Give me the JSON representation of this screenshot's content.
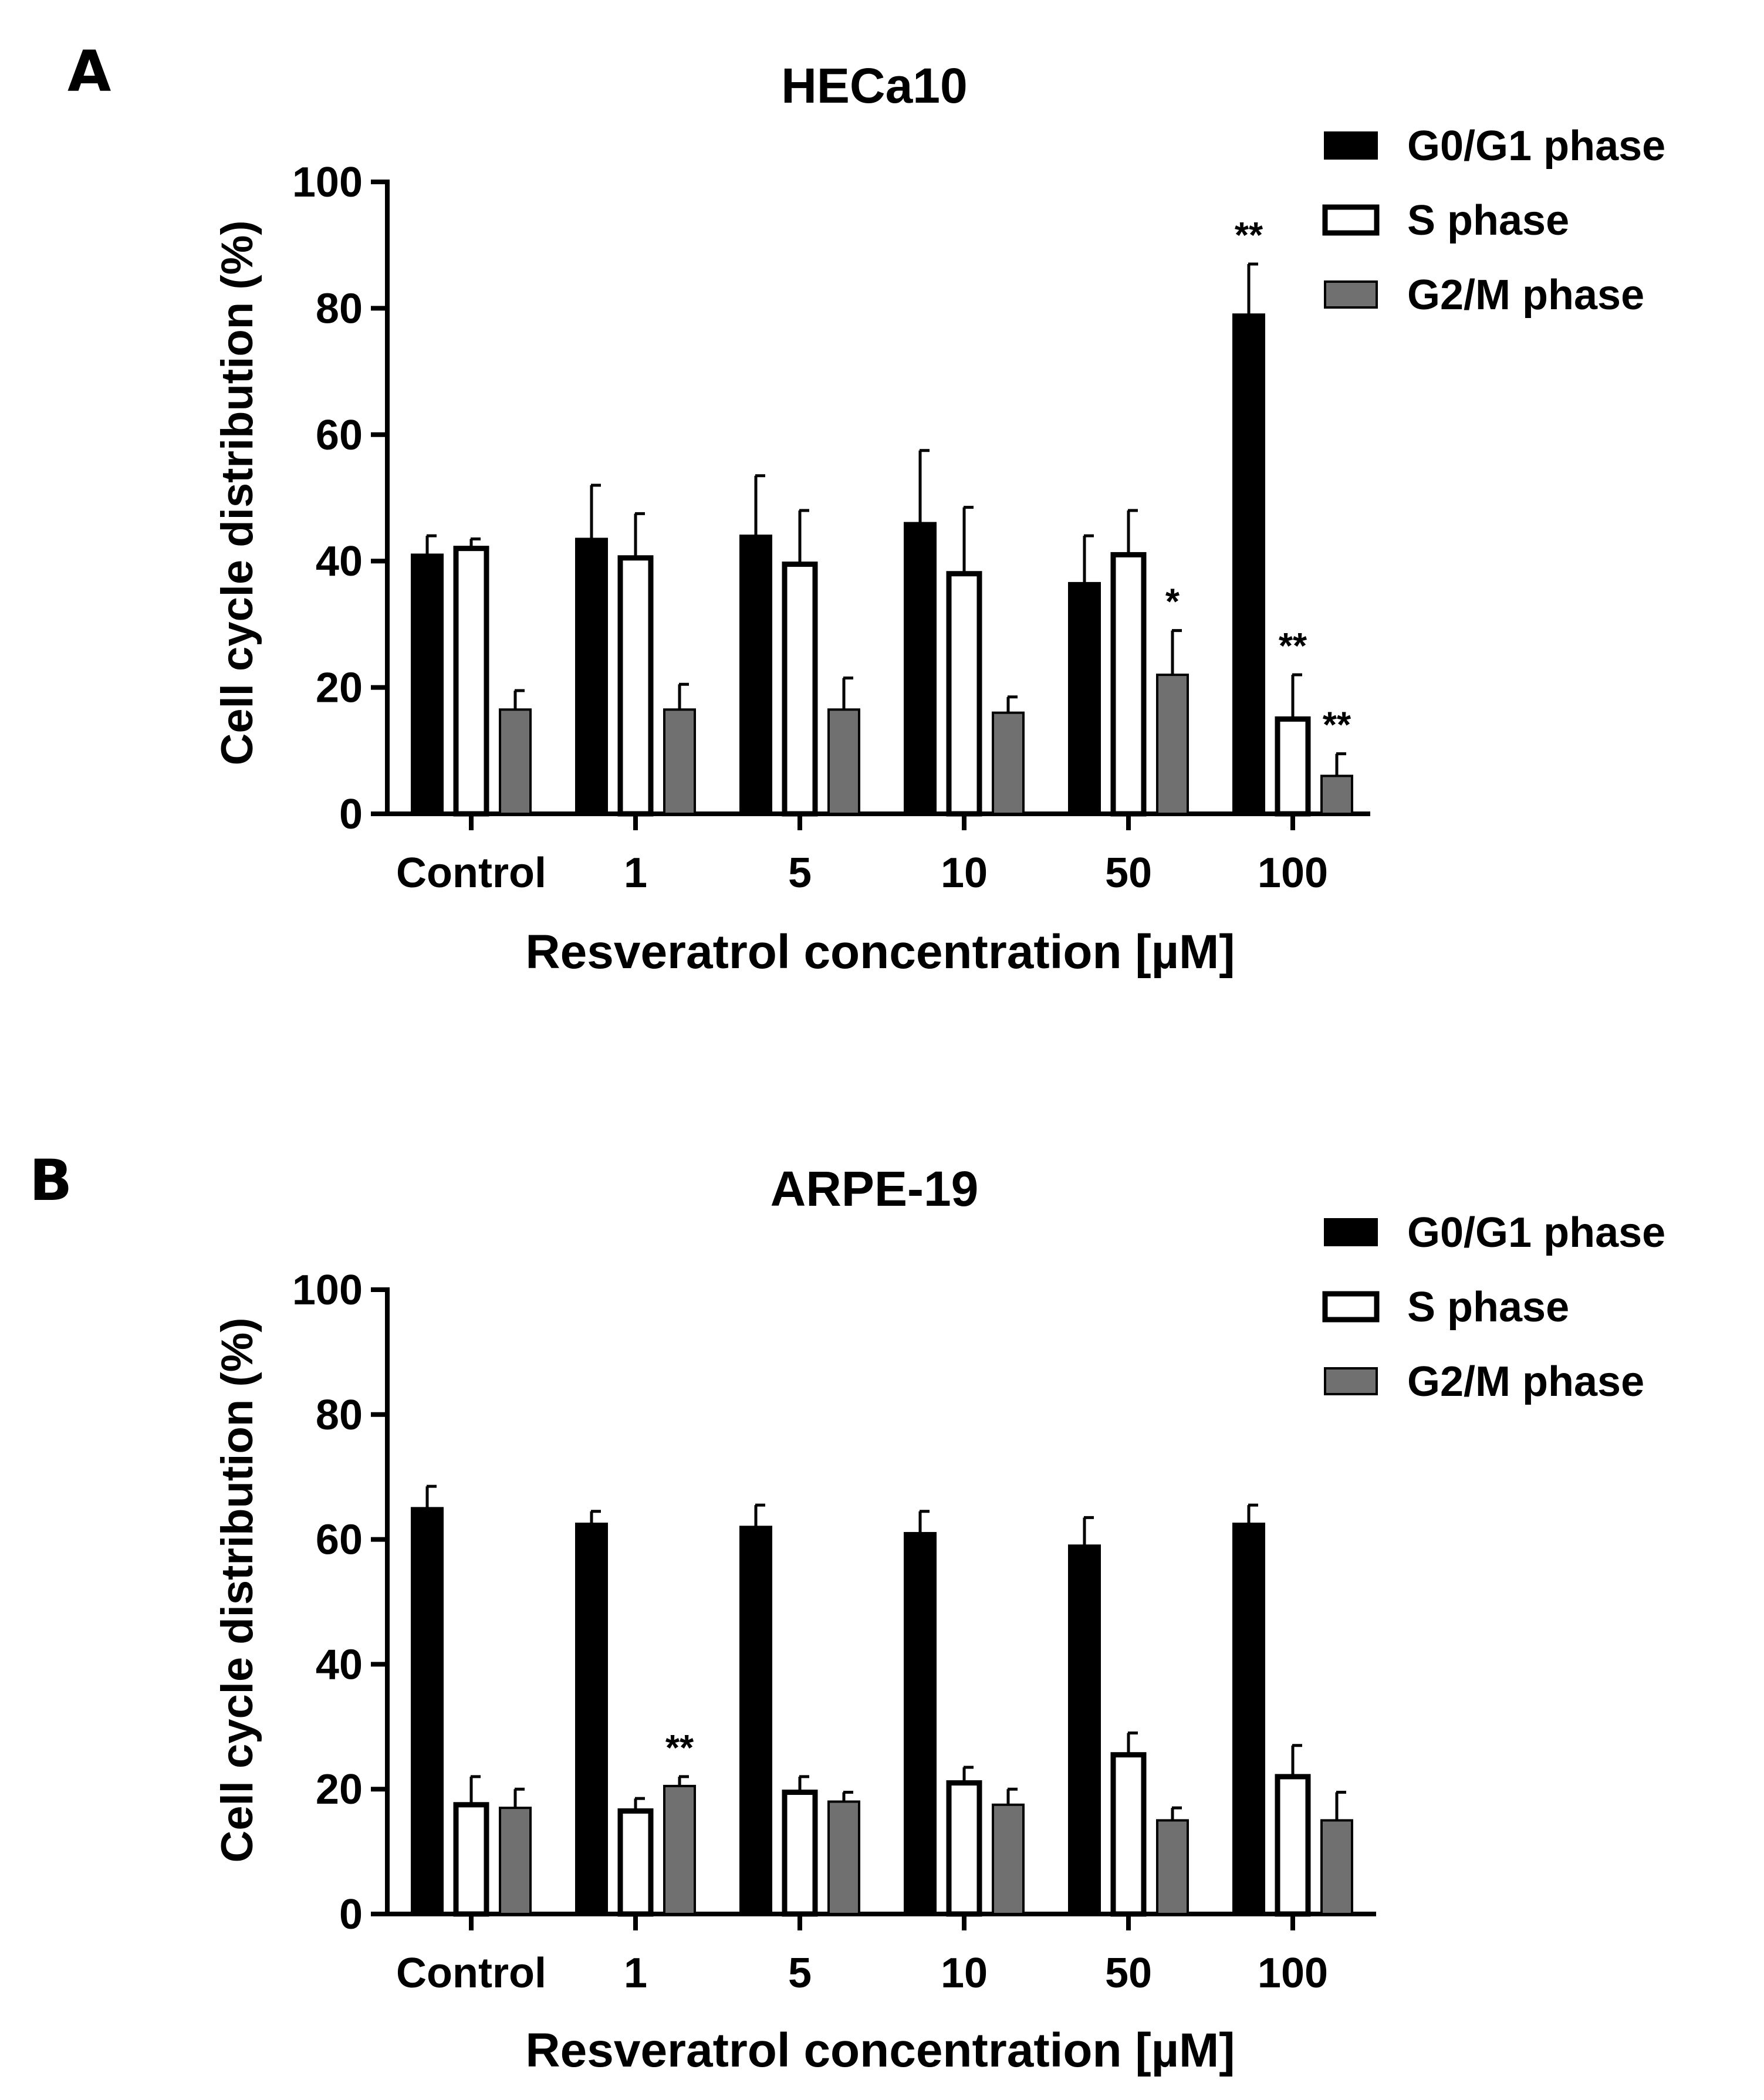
{
  "chart_data": [
    {
      "type": "bar",
      "panel_label": "A",
      "title": "HECa10",
      "xlabel": "Resveratrol concentration [µM]",
      "ylabel": "Cell cycle distribution (%)",
      "ylim": [
        0,
        100
      ],
      "yticks": [
        "0",
        "20",
        "40",
        "60",
        "80",
        "100"
      ],
      "categories": [
        "Control",
        "1",
        "5",
        "10",
        "50",
        "100"
      ],
      "legend_position": "top-right",
      "series": [
        {
          "name": "G0/G1 phase",
          "color": "#000000",
          "stroke": "#000000",
          "values": [
            41,
            43.5,
            44,
            46,
            36.5,
            79
          ],
          "errors": [
            3,
            8.5,
            9.5,
            11.5,
            7.5,
            8
          ],
          "significance": [
            "",
            "",
            "",
            "",
            "",
            "**"
          ]
        },
        {
          "name": "S phase",
          "color": "#ffffff",
          "stroke": "#000000",
          "values": [
            42,
            40.5,
            39.5,
            38,
            41,
            15
          ],
          "errors": [
            1.5,
            7,
            8.5,
            10.5,
            7,
            7
          ],
          "significance": [
            "",
            "",
            "",
            "",
            "",
            "**"
          ]
        },
        {
          "name": "G2/M phase",
          "color": "#707070",
          "stroke": "#000000",
          "values": [
            16.5,
            16.5,
            16.5,
            16,
            22,
            6
          ],
          "errors": [
            3,
            4,
            5,
            2.5,
            7,
            3.5
          ],
          "significance": [
            "",
            "",
            "",
            "",
            "*",
            "**"
          ]
        }
      ]
    },
    {
      "type": "bar",
      "panel_label": "B",
      "title": "ARPE-19",
      "xlabel": "Resveratrol concentration [µM]",
      "ylabel": "Cell cycle distribution (%)",
      "ylim": [
        0,
        100
      ],
      "yticks": [
        "0",
        "20",
        "40",
        "60",
        "80",
        "100"
      ],
      "categories": [
        "Control",
        "1",
        "5",
        "10",
        "50",
        "100"
      ],
      "legend_position": "top-right",
      "series": [
        {
          "name": "G0/G1 phase",
          "color": "#000000",
          "stroke": "#000000",
          "values": [
            65,
            62.5,
            62,
            61,
            59,
            62.5
          ],
          "errors": [
            3.5,
            2,
            3.5,
            3.5,
            4.5,
            3
          ],
          "significance": [
            "",
            "",
            "",
            "",
            "",
            ""
          ]
        },
        {
          "name": "S phase",
          "color": "#ffffff",
          "stroke": "#000000",
          "values": [
            17.5,
            16.5,
            19.5,
            21,
            25.5,
            22
          ],
          "errors": [
            4.5,
            2,
            2.5,
            2.5,
            3.5,
            5
          ],
          "significance": [
            "",
            "",
            "",
            "",
            "",
            ""
          ]
        },
        {
          "name": "G2/M phase",
          "color": "#707070",
          "stroke": "#000000",
          "values": [
            17,
            20.5,
            18,
            17.5,
            15,
            15
          ],
          "errors": [
            3,
            1.5,
            1.5,
            2.5,
            2,
            4.5
          ],
          "significance": [
            "",
            "**",
            "",
            "",
            "",
            ""
          ]
        }
      ]
    }
  ]
}
